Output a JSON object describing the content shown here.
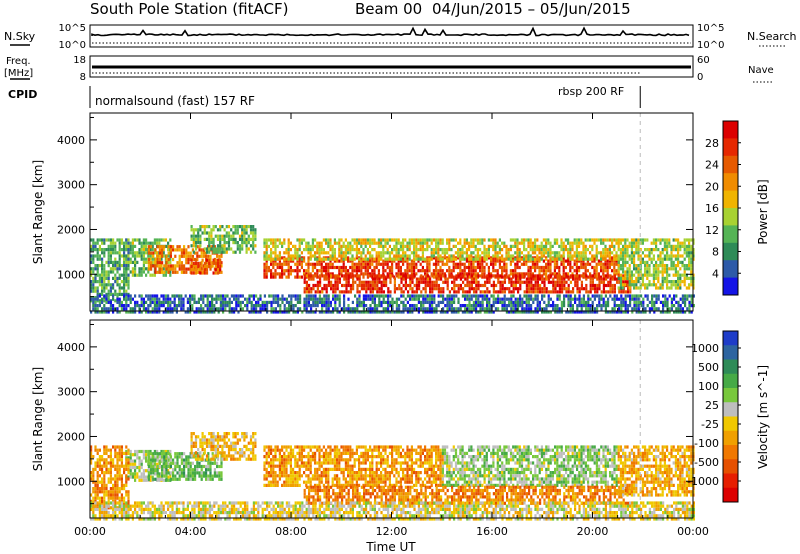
{
  "header": {
    "title": "South Pole Station (fitACF)",
    "beam": "Beam 00",
    "date_range": "04/Jun/2015 – 05/Jun/2015"
  },
  "noise_panel": {
    "left_label": "N.Sky",
    "left_tick_top": "10^5",
    "left_tick_bottom": "10^0",
    "right_tick_top": "10^5",
    "right_tick_bottom": "10^0",
    "right_label": "N.Search"
  },
  "freq_panel": {
    "left_label_line1": "Freq.",
    "left_label_line2": "[MHz]",
    "left_tick_top": "18",
    "left_tick_bottom": "8",
    "right_tick_top": "60",
    "right_tick_bottom": "0",
    "right_label": "Nave"
  },
  "cpid_panel": {
    "label": "CPID",
    "mode1": "normalsound (fast) 157 RF",
    "mode2": "rbsp 200 RF",
    "mode_change_time_hours": 21.9
  },
  "colorbars": {
    "power": {
      "label": "Power [dB]",
      "ticks": [
        "4",
        "8",
        "12",
        "16",
        "20",
        "24",
        "28"
      ],
      "colors": [
        "#1414e6",
        "#2d5aa8",
        "#2e8b57",
        "#55b455",
        "#a8d232",
        "#f0b400",
        "#f08c00",
        "#e65a00",
        "#e62800",
        "#dc0000"
      ]
    },
    "velocity": {
      "label": "Velocity [m s^-1]",
      "ticks": [
        "1000",
        "500",
        "100",
        "25",
        "-25",
        "-100",
        "-500",
        "-1000"
      ],
      "colors": [
        "#1e3cc8",
        "#2d64a0",
        "#2e8b57",
        "#46aa46",
        "#78c83c",
        "#bebebe",
        "#f0c800",
        "#f0a000",
        "#f07800",
        "#e65000",
        "#e61e00",
        "#dc0000"
      ]
    }
  },
  "x_axis": {
    "label": "Time UT",
    "ticks": [
      "00:00",
      "04:00",
      "08:00",
      "12:00",
      "16:00",
      "20:00",
      "00:00"
    ]
  },
  "chart_data": [
    {
      "type": "heatmap",
      "name": "power",
      "ylabel": "Slant Range [km]",
      "xlabel": "",
      "xlim_hours": [
        0,
        24
      ],
      "ylim": [
        180,
        4600
      ],
      "yticks": [
        1000,
        2000,
        3000,
        4000
      ],
      "colorbar_range_db": [
        0,
        32
      ],
      "regions": [
        {
          "t0": 1.4,
          "t1": 3.2,
          "r0": 1000,
          "r1": 1800,
          "value": 12
        },
        {
          "t0": 2.3,
          "t1": 5.2,
          "r0": 1050,
          "r1": 1650,
          "value": 22
        },
        {
          "t0": 4.0,
          "t1": 5.2,
          "r0": 1050,
          "r1": 1350,
          "value": 25
        },
        {
          "t0": 4.0,
          "t1": 6.6,
          "r0": 1500,
          "r1": 2100,
          "value": 12
        },
        {
          "t0": 6.9,
          "t1": 21.0,
          "r0": 900,
          "r1": 1400,
          "value": 26
        },
        {
          "t0": 6.9,
          "t1": 21.0,
          "r0": 1350,
          "r1": 1800,
          "value": 16
        },
        {
          "t0": 8.5,
          "t1": 21.5,
          "r0": 600,
          "r1": 1000,
          "value": 27
        },
        {
          "t0": 21.0,
          "t1": 24.0,
          "r0": 700,
          "r1": 1800,
          "value": 14
        },
        {
          "t0": 0.0,
          "t1": 1.5,
          "r0": 400,
          "r1": 1800,
          "value": 10
        },
        {
          "t0": 0.0,
          "t1": 24.0,
          "r0": 180,
          "r1": 550,
          "value": 6
        }
      ]
    },
    {
      "type": "heatmap",
      "name": "velocity",
      "ylabel": "Slant Range [km]",
      "xlabel": "Time UT",
      "xlim_hours": [
        0,
        24
      ],
      "ylim": [
        180,
        4600
      ],
      "yticks": [
        1000,
        2000,
        3000,
        4000
      ],
      "regions": [
        {
          "t0": 1.4,
          "t1": 3.2,
          "r0": 1000,
          "r1": 1700,
          "value": 150
        },
        {
          "t0": 2.3,
          "t1": 5.2,
          "r0": 1050,
          "r1": 1650,
          "value": 300
        },
        {
          "t0": 4.0,
          "t1": 6.6,
          "r0": 1500,
          "r1": 2100,
          "value": -150
        },
        {
          "t0": 6.9,
          "t1": 14.0,
          "r0": 900,
          "r1": 1800,
          "value": -300
        },
        {
          "t0": 14.0,
          "t1": 21.0,
          "r0": 900,
          "r1": 1800,
          "value": 200
        },
        {
          "t0": 8.5,
          "t1": 21.5,
          "r0": 500,
          "r1": 900,
          "value": -400
        },
        {
          "t0": 21.0,
          "t1": 24.0,
          "r0": 700,
          "r1": 1800,
          "value": -200
        },
        {
          "t0": 0.0,
          "t1": 1.5,
          "r0": 400,
          "r1": 1800,
          "value": -300
        },
        {
          "t0": 0.0,
          "t1": 24.0,
          "r0": 180,
          "r1": 550,
          "value": 0
        }
      ]
    }
  ]
}
